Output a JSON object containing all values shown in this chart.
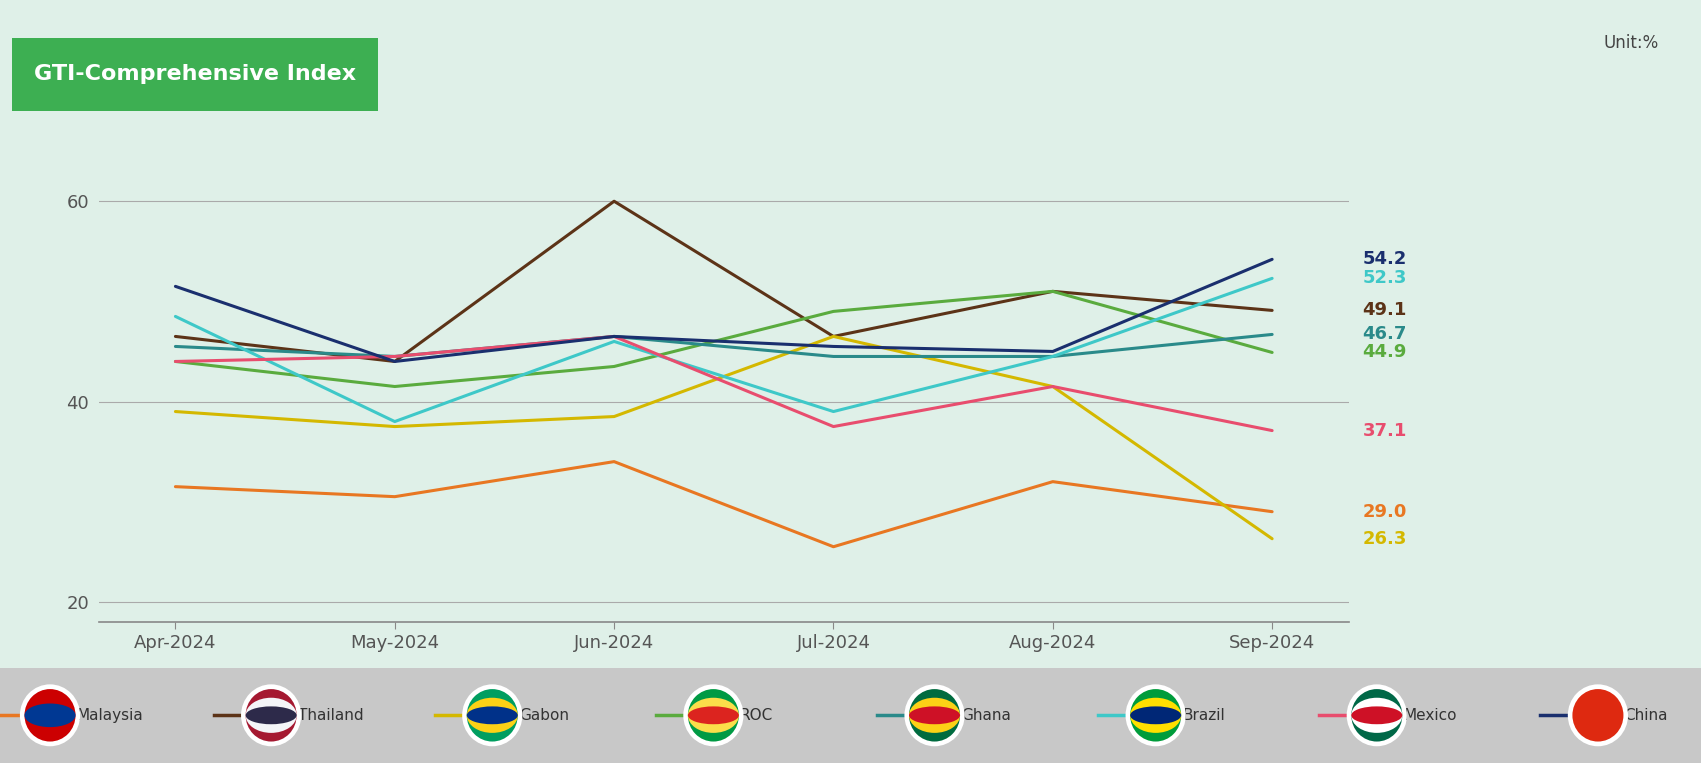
{
  "title": "GTI-Comprehensive Index",
  "unit": "Unit:%",
  "background_color": "#dff0e8",
  "legend_background_color": "#c8c8c8",
  "months": [
    "Apr-2024",
    "May-2024",
    "Jun-2024",
    "Jul-2024",
    "Aug-2024",
    "Sep-2024"
  ],
  "ylim": [
    18,
    66
  ],
  "yticks": [
    20,
    40,
    60
  ],
  "series": [
    {
      "name": "Malaysia",
      "color": "#e87722",
      "values": [
        31.5,
        30.5,
        34.0,
        25.5,
        32.0,
        29.0
      ]
    },
    {
      "name": "Thailand",
      "color": "#5c3317",
      "values": [
        46.5,
        44.0,
        60.0,
        46.5,
        51.0,
        49.1
      ]
    },
    {
      "name": "Gabon",
      "color": "#d4b800",
      "values": [
        39.0,
        37.5,
        38.5,
        46.5,
        41.5,
        26.3
      ]
    },
    {
      "name": "ROC",
      "color": "#5aab3e",
      "values": [
        44.0,
        41.5,
        43.5,
        49.0,
        51.0,
        44.9
      ]
    },
    {
      "name": "Ghana",
      "color": "#2a8a8a",
      "values": [
        45.5,
        44.5,
        46.5,
        44.5,
        44.5,
        46.7
      ]
    },
    {
      "name": "Brazil",
      "color": "#3ec8c8",
      "values": [
        48.5,
        38.0,
        46.0,
        39.0,
        44.5,
        52.3
      ]
    },
    {
      "name": "Mexico",
      "color": "#e84d6e",
      "values": [
        44.0,
        44.5,
        46.5,
        37.5,
        41.5,
        37.1
      ]
    },
    {
      "name": "China",
      "color": "#1a2f6e",
      "values": [
        51.5,
        44.0,
        46.5,
        45.5,
        45.0,
        54.2
      ]
    }
  ],
  "end_labels": [
    {
      "value": 54.2,
      "color": "#1a2f6e"
    },
    {
      "value": 52.3,
      "color": "#3ec8c8"
    },
    {
      "value": 49.1,
      "color": "#5c3317"
    },
    {
      "value": 46.7,
      "color": "#2a8a8a"
    },
    {
      "value": 44.9,
      "color": "#5aab3e"
    },
    {
      "value": 37.1,
      "color": "#e84d6e"
    },
    {
      "value": 29.0,
      "color": "#e87722"
    },
    {
      "value": 26.3,
      "color": "#d4b800"
    }
  ],
  "title_box_color": "#3daf52",
  "title_text_color": "#ffffff",
  "grid_color": "#aaaaaa",
  "line_width": 2.2,
  "legend_items": [
    {
      "name": "Malaysia",
      "color": "#e87722"
    },
    {
      "name": "Thailand",
      "color": "#5c3317"
    },
    {
      "name": "Gabon",
      "color": "#d4b800"
    },
    {
      "name": "ROC",
      "color": "#5aab3e"
    },
    {
      "name": "Ghana",
      "color": "#2a8a8a"
    },
    {
      "name": "Brazil",
      "color": "#3ec8c8"
    },
    {
      "name": "Mexico",
      "color": "#e84d6e"
    },
    {
      "name": "China",
      "color": "#1a2f6e"
    }
  ]
}
